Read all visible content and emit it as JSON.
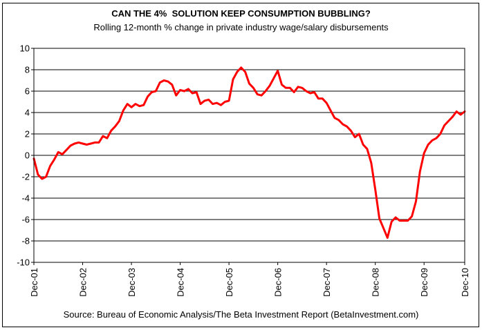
{
  "chart_data": {
    "type": "line",
    "title": "CAN THE 4%  SOLUTION KEEP CONSUMPTION BUBBLING?",
    "subtitle": "Rolling 12-month % change in private industry wage/salary disbursements",
    "source": "Source: Bureau of Economic Analysis/The Beta Investment Report (BetaInvestment.com)",
    "xlabel": "",
    "ylabel": "",
    "ylim": [
      -10,
      10
    ],
    "yticks": [
      "10",
      "8",
      "6",
      "4",
      "2",
      "0",
      "-2",
      "-4",
      "-6",
      "-8",
      "-10"
    ],
    "xticks": [
      "Dec-01",
      "Dec-02",
      "Dec-03",
      "Dec-04",
      "Dec-05",
      "Dec-06",
      "Dec-07",
      "Dec-08",
      "Dec-09",
      "Dec-10"
    ],
    "grid": "horizontal",
    "line_color": "#ff0000",
    "series": [
      {
        "values": [
          -0.3,
          -1.8,
          -2.2,
          -2.0,
          -1.0,
          -0.4,
          0.3,
          0.1,
          0.5,
          0.9,
          1.1,
          1.2,
          1.1,
          1.0,
          1.1,
          1.2,
          1.2,
          1.8,
          1.6,
          2.3,
          2.7,
          3.2,
          4.2,
          4.8,
          4.5,
          4.8,
          4.6,
          4.7,
          5.5,
          5.9,
          6.0,
          6.8,
          7.0,
          6.9,
          6.6,
          5.6,
          6.1,
          6.0,
          6.2,
          5.8,
          5.9,
          4.8,
          5.1,
          5.2,
          4.8,
          4.9,
          4.7,
          5.0,
          5.1,
          7.1,
          7.8,
          8.2,
          7.8,
          6.7,
          6.3,
          5.7,
          5.6,
          6.0,
          6.5,
          7.2,
          7.9,
          6.6,
          6.3,
          6.3,
          5.9,
          6.4,
          6.3,
          6.0,
          5.8,
          5.9,
          5.3,
          5.3,
          4.9,
          4.2,
          3.5,
          3.3,
          2.9,
          2.7,
          2.3,
          1.7,
          2.0,
          1.0,
          0.6,
          -0.7,
          -3.2,
          -5.9,
          -6.8,
          -7.7,
          -6.2,
          -5.8,
          -6.1,
          -6.1,
          -6.1,
          -5.7,
          -4.3,
          -1.5,
          0.2,
          1.0,
          1.4,
          1.6,
          2.0,
          2.8,
          3.2,
          3.6,
          4.1,
          3.8,
          4.1
        ]
      }
    ]
  }
}
